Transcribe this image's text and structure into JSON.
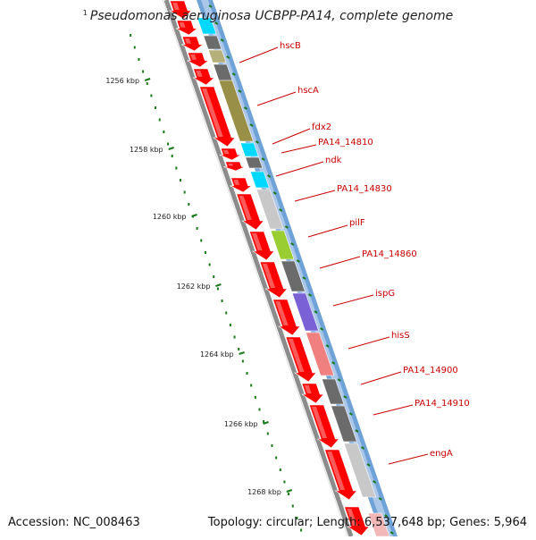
{
  "title": {
    "index": "1",
    "text": "Pseudomonas aeruginosa UCBPP-PA14, complete genome"
  },
  "footer": {
    "accession": "Accession: NC_008463",
    "topology": "Topology: circular; Length: 6,537,648 bp; Genes: 5,964"
  },
  "scale": {
    "unit": "kbp",
    "labels": [
      "1256 kbp",
      "1258 kbp",
      "1260 kbp",
      "1262 kbp",
      "1264 kbp",
      "1266 kbp",
      "1268 kbp"
    ]
  },
  "genes": [
    {
      "name": "hscB",
      "color": "#ff0000"
    },
    {
      "name": "hscA",
      "color": "#ff0000"
    },
    {
      "name": "fdx2",
      "color": "#ff0000"
    },
    {
      "name": "PA14_14810",
      "color": "#ff0000"
    },
    {
      "name": "ndk",
      "color": "#ff0000"
    },
    {
      "name": "PA14_14830",
      "color": "#ff0000"
    },
    {
      "name": "pilF",
      "color": "#ff0000"
    },
    {
      "name": "PA14_14860",
      "color": "#ff0000"
    },
    {
      "name": "ispG",
      "color": "#ff0000"
    },
    {
      "name": "hisS",
      "color": "#ff0000"
    },
    {
      "name": "PA14_14900",
      "color": "#ff0000"
    },
    {
      "name": "PA14_14910",
      "color": "#ff0000"
    },
    {
      "name": "engA",
      "color": "#ff0000"
    }
  ],
  "cog_colors": [
    "#00d8ff",
    "#6b6b6b",
    "#b5b07a",
    "#9a8f47",
    "#9acd32",
    "#7b61d6",
    "#f08080",
    "#c8c8c8"
  ],
  "colors": {
    "label_red": "#cc0000",
    "scale_green": "#1a7a1a",
    "backbone": "#8c8c8c"
  }
}
